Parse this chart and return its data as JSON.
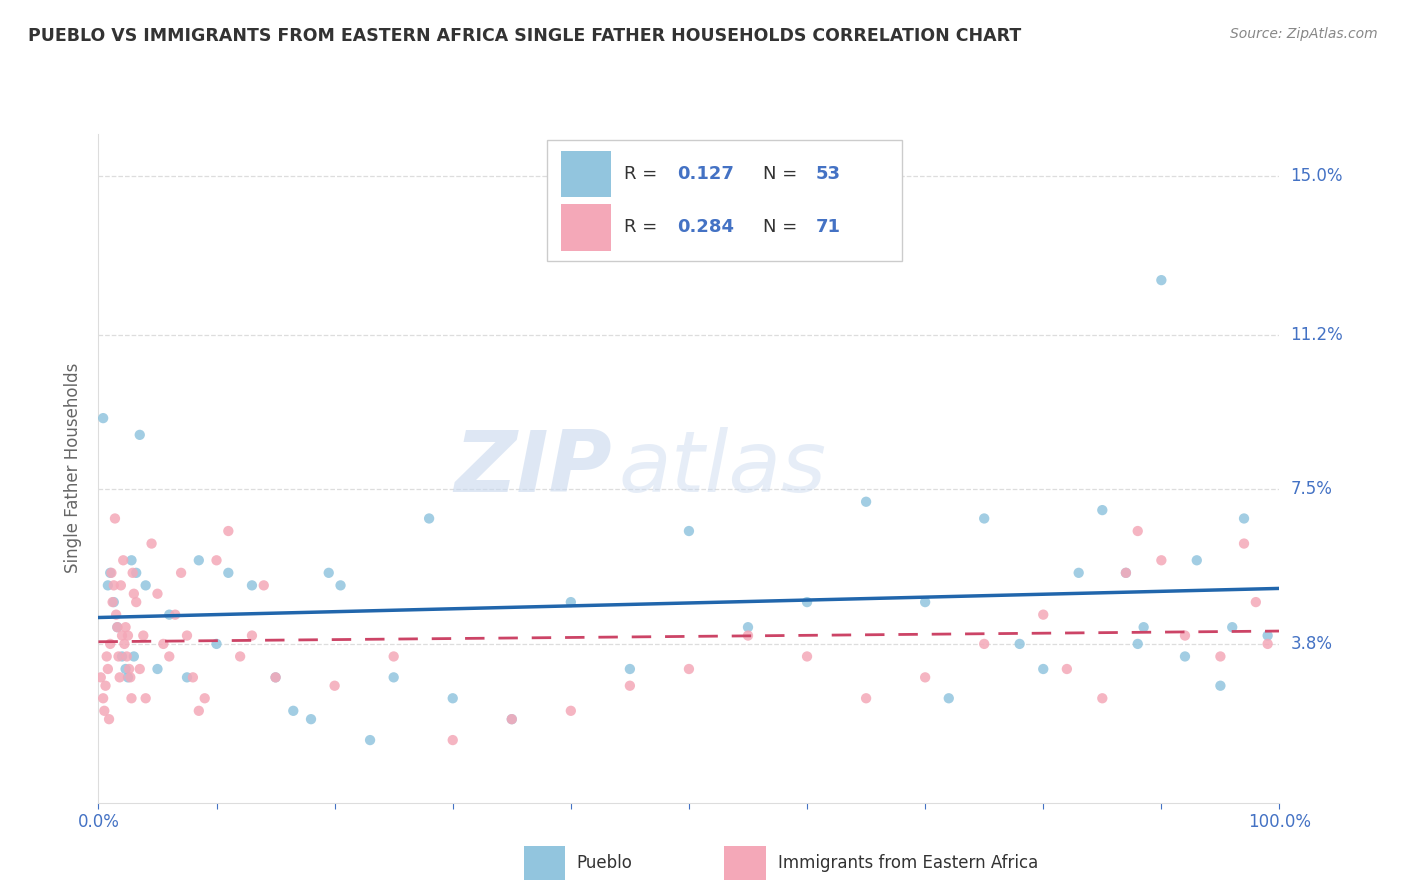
{
  "title": "PUEBLO VS IMMIGRANTS FROM EASTERN AFRICA SINGLE FATHER HOUSEHOLDS CORRELATION CHART",
  "source": "Source: ZipAtlas.com",
  "ylabel": "Single Father Households",
  "xlim": [
    0,
    100
  ],
  "ylim": [
    0,
    16.0
  ],
  "yticks": [
    3.8,
    7.5,
    11.2,
    15.0
  ],
  "ytick_labels": [
    "3.8%",
    "7.5%",
    "11.2%",
    "15.0%"
  ],
  "xticks": [
    0,
    10,
    20,
    30,
    40,
    50,
    60,
    70,
    80,
    90,
    100
  ],
  "xtick_labels": [
    "0.0%",
    "",
    "",
    "",
    "",
    "",
    "",
    "",
    "",
    "",
    "100.0%"
  ],
  "legend1_label": "Pueblo",
  "legend2_label": "Immigrants from Eastern Africa",
  "r1": "0.127",
  "n1": "53",
  "r2": "0.284",
  "n2": "71",
  "color_blue": "#92c5de",
  "color_pink": "#f4a8b8",
  "trendline_blue": "#2166ac",
  "trendline_pink": "#cc4466",
  "watermark_zip": "ZIP",
  "watermark_atlas": "atlas",
  "background_color": "#ffffff",
  "title_color": "#333333",
  "axis_color": "#4472c4",
  "grid_color": "#dddddd",
  "blue_scatter_x": [
    0.4,
    0.8,
    1.0,
    1.3,
    1.6,
    2.0,
    2.3,
    2.5,
    2.8,
    3.0,
    3.2,
    3.5,
    4.0,
    5.0,
    6.0,
    7.5,
    8.5,
    10.0,
    11.0,
    13.0,
    15.0,
    16.5,
    18.0,
    19.5,
    20.5,
    23.0,
    25.0,
    28.0,
    30.0,
    35.0,
    40.0,
    45.0,
    50.0,
    55.0,
    60.0,
    65.0,
    70.0,
    72.0,
    75.0,
    78.0,
    80.0,
    83.0,
    85.0,
    87.0,
    88.0,
    90.0,
    92.0,
    95.0,
    97.0,
    99.0,
    88.5,
    93.0,
    96.0
  ],
  "blue_scatter_y": [
    9.2,
    5.2,
    5.5,
    4.8,
    4.2,
    3.5,
    3.2,
    3.0,
    5.8,
    3.5,
    5.5,
    8.8,
    5.2,
    3.2,
    4.5,
    3.0,
    5.8,
    3.8,
    5.5,
    5.2,
    3.0,
    2.2,
    2.0,
    5.5,
    5.2,
    1.5,
    3.0,
    6.8,
    2.5,
    2.0,
    4.8,
    3.2,
    6.5,
    4.2,
    4.8,
    7.2,
    4.8,
    2.5,
    6.8,
    3.8,
    3.2,
    5.5,
    7.0,
    5.5,
    3.8,
    12.5,
    3.5,
    2.8,
    6.8,
    4.0,
    4.2,
    5.8,
    4.2
  ],
  "pink_scatter_x": [
    0.2,
    0.4,
    0.5,
    0.6,
    0.7,
    0.8,
    0.9,
    1.0,
    1.1,
    1.2,
    1.3,
    1.4,
    1.5,
    1.6,
    1.7,
    1.8,
    1.9,
    2.0,
    2.1,
    2.2,
    2.3,
    2.4,
    2.5,
    2.6,
    2.7,
    2.8,
    2.9,
    3.0,
    3.2,
    3.5,
    3.8,
    4.0,
    4.5,
    5.0,
    5.5,
    6.0,
    6.5,
    7.0,
    7.5,
    8.0,
    8.5,
    9.0,
    10.0,
    11.0,
    12.0,
    13.0,
    14.0,
    15.0,
    20.0,
    25.0,
    30.0,
    35.0,
    40.0,
    45.0,
    50.0,
    55.0,
    60.0,
    65.0,
    70.0,
    75.0,
    80.0,
    82.0,
    85.0,
    87.0,
    88.0,
    90.0,
    92.0,
    95.0,
    97.0,
    98.0,
    99.0
  ],
  "pink_scatter_y": [
    3.0,
    2.5,
    2.2,
    2.8,
    3.5,
    3.2,
    2.0,
    3.8,
    5.5,
    4.8,
    5.2,
    6.8,
    4.5,
    4.2,
    3.5,
    3.0,
    5.2,
    4.0,
    5.8,
    3.8,
    4.2,
    3.5,
    4.0,
    3.2,
    3.0,
    2.5,
    5.5,
    5.0,
    4.8,
    3.2,
    4.0,
    2.5,
    6.2,
    5.0,
    3.8,
    3.5,
    4.5,
    5.5,
    4.0,
    3.0,
    2.2,
    2.5,
    5.8,
    6.5,
    3.5,
    4.0,
    5.2,
    3.0,
    2.8,
    3.5,
    1.5,
    2.0,
    2.2,
    2.8,
    3.2,
    4.0,
    3.5,
    2.5,
    3.0,
    3.8,
    4.5,
    3.2,
    2.5,
    5.5,
    6.5,
    5.8,
    4.0,
    3.5,
    6.2,
    4.8,
    3.8
  ]
}
